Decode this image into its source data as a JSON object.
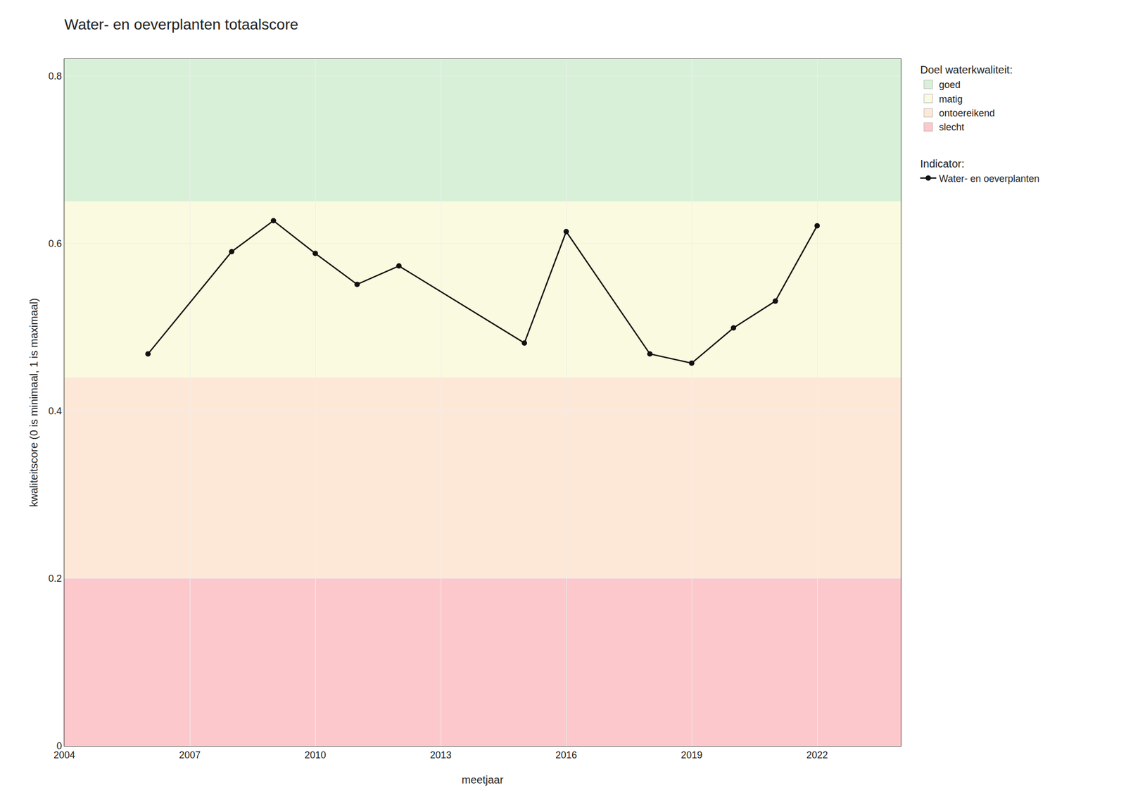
{
  "chart_data": {
    "type": "line",
    "title": "Water- en oeverplanten totaalscore",
    "x_label": "meetjaar",
    "y_label": "kwaliteitscore (0 is minimaal, 1 is maximaal)",
    "x": [
      2006,
      2008,
      2009,
      2010,
      2011,
      2012,
      2015,
      2016,
      2018,
      2019,
      2020,
      2021,
      2022
    ],
    "series": [
      {
        "name": "Water- en oeverplanten",
        "legend_title": "Indicator:",
        "color": "#111111",
        "marker": "circle",
        "line_style": "solid",
        "values": [
          0.468,
          0.59,
          0.627,
          0.588,
          0.551,
          0.573,
          0.481,
          0.614,
          0.468,
          0.457,
          0.499,
          0.531,
          0.621
        ]
      }
    ],
    "xlim": [
      2004,
      2024
    ],
    "ylim": [
      0.0,
      0.82
    ],
    "xticks": [
      2004,
      2007,
      2010,
      2013,
      2016,
      2019,
      2022
    ],
    "yticks": [
      0.0,
      0.2,
      0.4,
      0.6,
      0.8
    ],
    "grid": true,
    "legend": "right",
    "zones": {
      "title": "Doel waterkwaliteit:",
      "bands": [
        {
          "ymin": 0.0,
          "ymax": 0.2,
          "color": "#fcc8cc",
          "label": "slecht"
        },
        {
          "ymin": 0.2,
          "ymax": 0.44,
          "color": "#fde8d8",
          "label": "ontoereikend"
        },
        {
          "ymin": 0.44,
          "ymax": 0.65,
          "color": "#fafae0",
          "label": "matig"
        },
        {
          "ymin": 0.65,
          "ymax": 0.82,
          "color": "#d8f0d8",
          "label": "goed"
        }
      ]
    }
  }
}
